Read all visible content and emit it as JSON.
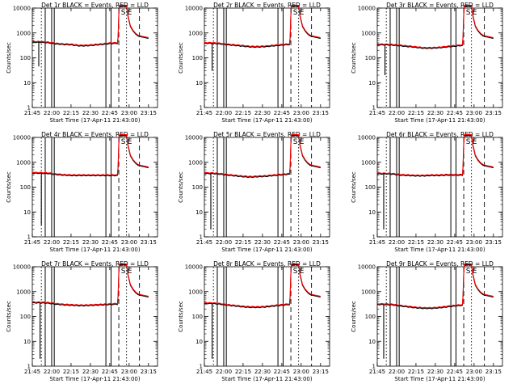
{
  "chart_data": {
    "type": "line",
    "layout": "3x3 grid",
    "x_tick_labels": [
      "21:45",
      "22:00",
      "22:15",
      "22:30",
      "22:45",
      "23:00",
      "23:15"
    ],
    "x_ticks_minutes": [
      0,
      15,
      30,
      45,
      60,
      75,
      90
    ],
    "xlim_minutes": [
      0,
      97
    ],
    "xlabel": "Start Time (17-Apr-11 21:43:00)",
    "ylabel": "Counts/sec",
    "yscale": "log",
    "ylim": [
      1,
      10000
    ],
    "y_tick_labels": [
      "1",
      "10",
      "100",
      "1000",
      "10000"
    ],
    "y_ticks": [
      1,
      10,
      100,
      1000,
      10000
    ],
    "grid": false,
    "series_colors": {
      "events": "#000000",
      "lld": "#ff0000"
    },
    "solid_vlines_minutes": [
      10,
      15,
      17,
      57,
      61
    ],
    "dashed_vlines_minutes": [
      67,
      83
    ],
    "dotted_vlines_minutes": [
      7,
      73
    ],
    "panel_markers": [
      "S",
      "E"
    ],
    "panels": [
      {
        "title": "Det 1r BLACK = Events, RED = LLD",
        "base": [
          420,
          420,
          400,
          360,
          340,
          330,
          300,
          300,
          320,
          340,
          370,
          380
        ],
        "spike_min": 45,
        "spike_at": 5
      },
      {
        "title": "Det 2r BLACK = Events, RED = LLD",
        "base": [
          380,
          380,
          360,
          330,
          310,
          290,
          270,
          270,
          280,
          300,
          320,
          340
        ],
        "spike_min": 30,
        "spike_at": 6
      },
      {
        "title": "Det 3r BLACK = Events, RED = LLD",
        "base": [
          330,
          330,
          320,
          300,
          280,
          260,
          240,
          240,
          250,
          270,
          290,
          310
        ],
        "spike_min": 20,
        "spike_at": 6
      },
      {
        "title": "Det 4r BLACK = Events, RED = LLD",
        "base": [
          360,
          360,
          350,
          320,
          300,
          290,
          290,
          290,
          290,
          290,
          290,
          290
        ],
        "spike_min": 3,
        "spike_at": 7
      },
      {
        "title": "Det 5r BLACK = Events, RED = LLD",
        "base": [
          350,
          350,
          330,
          300,
          280,
          260,
          250,
          260,
          270,
          290,
          310,
          330
        ],
        "spike_min": 2,
        "spike_at": 5
      },
      {
        "title": "Det 6r BLACK = Events, RED = LLD",
        "base": [
          340,
          340,
          330,
          300,
          290,
          280,
          280,
          290,
          290,
          300,
          300,
          300
        ],
        "spike_min": 2,
        "spike_at": 5
      },
      {
        "title": "Det 7r BLACK = Events, RED = LLD",
        "base": [
          350,
          350,
          340,
          310,
          290,
          280,
          270,
          270,
          280,
          290,
          300,
          310
        ],
        "spike_min": 2,
        "spike_at": 6
      },
      {
        "title": "Det 8r BLACK = Events, RED = LLD",
        "base": [
          330,
          330,
          310,
          280,
          260,
          240,
          230,
          230,
          240,
          260,
          280,
          300
        ],
        "spike_min": 2,
        "spike_at": 6
      },
      {
        "title": "Det 9r BLACK = Events, RED = LLD",
        "base": [
          300,
          300,
          290,
          260,
          240,
          220,
          210,
          210,
          220,
          240,
          260,
          280
        ],
        "spike_min": 2,
        "spike_at": 5
      }
    ]
  }
}
